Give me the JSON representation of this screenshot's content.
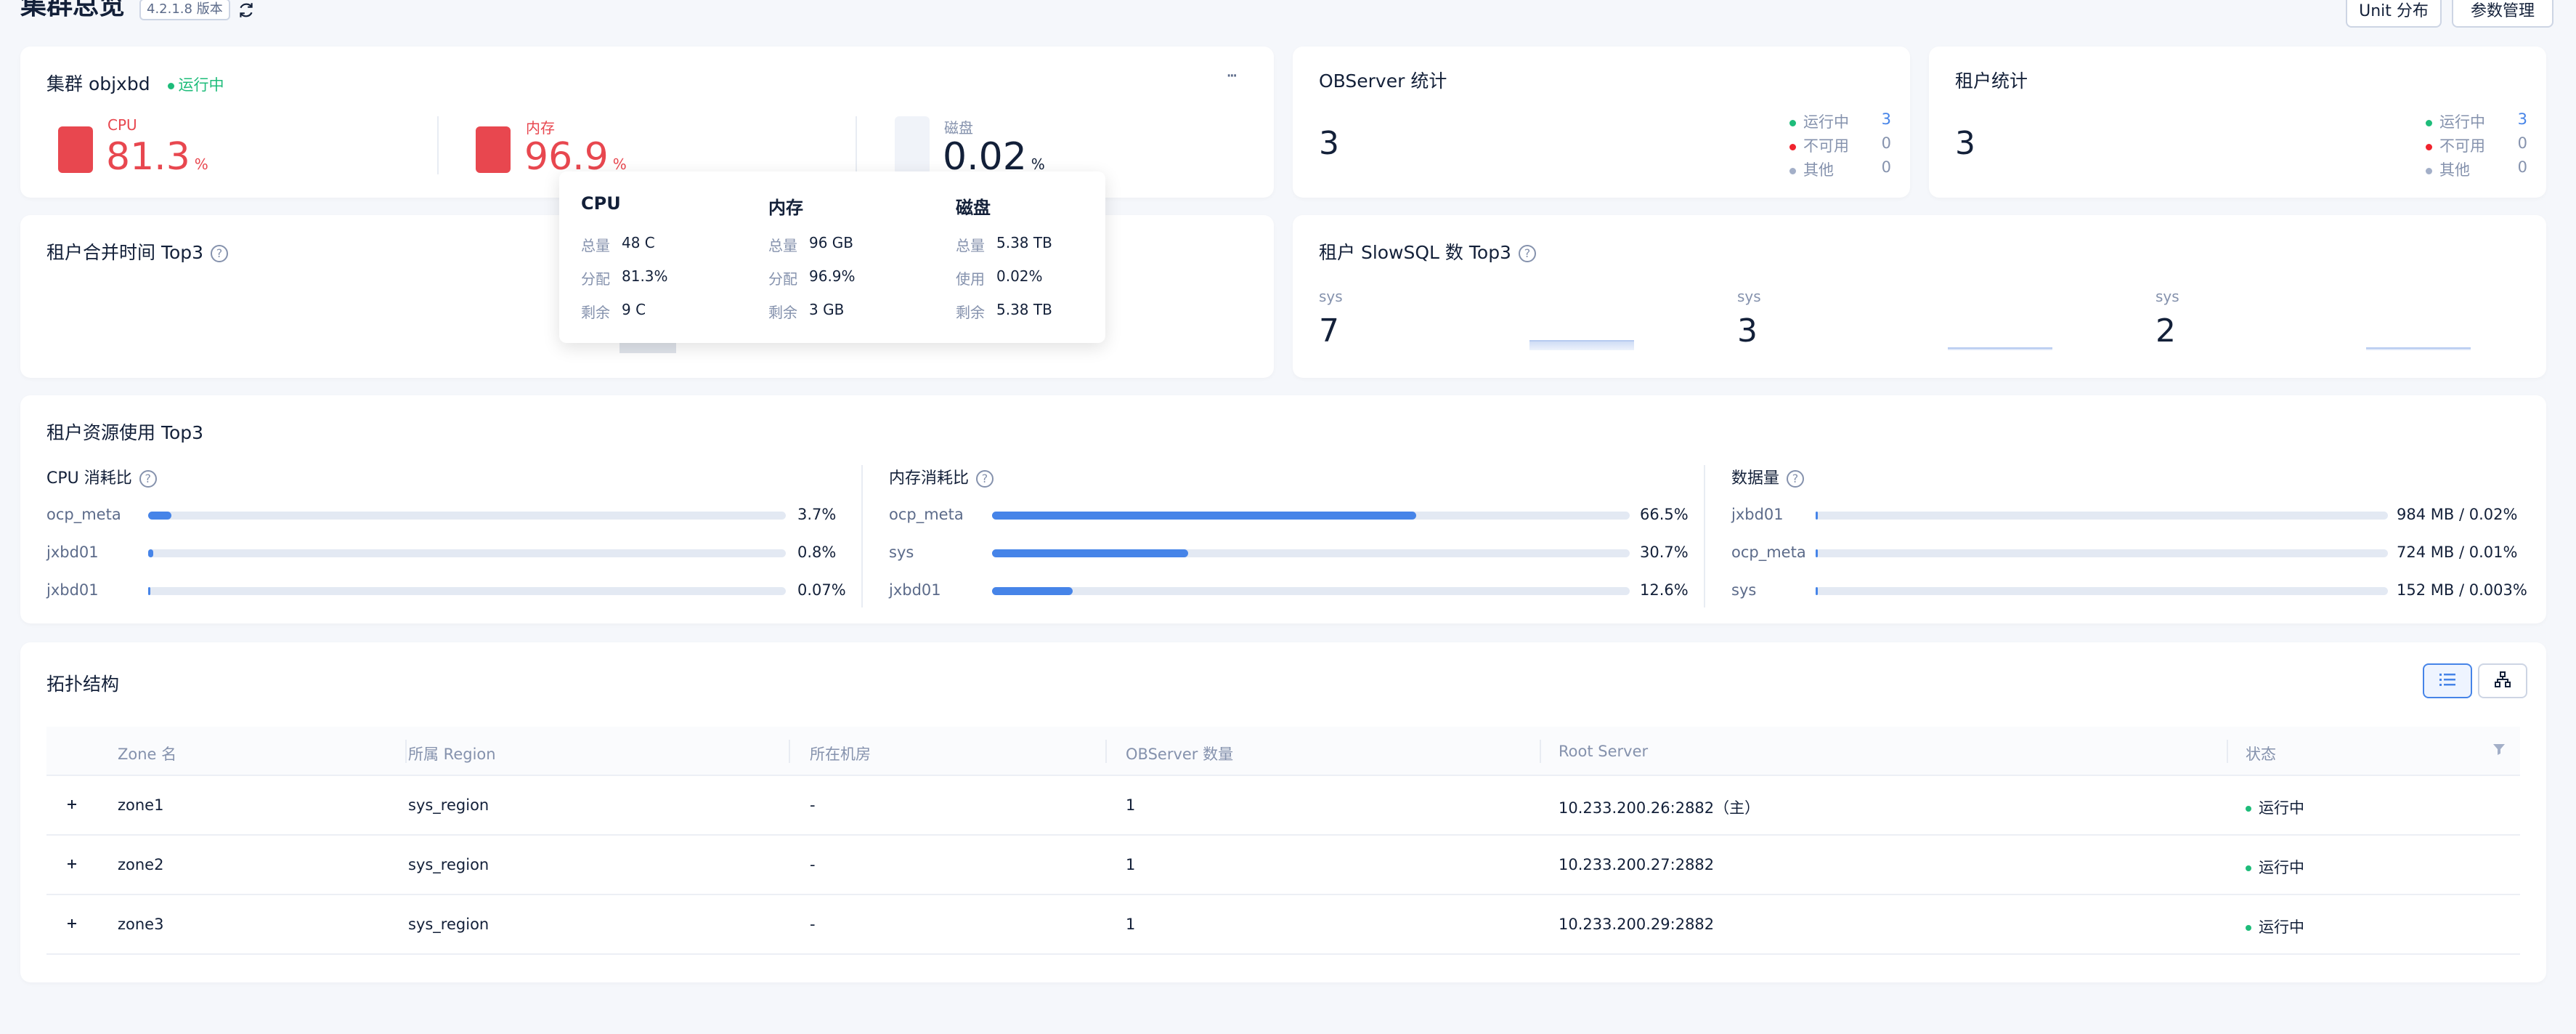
{
  "header": {
    "title": "集群总览",
    "version": "4.2.1.8 版本",
    "unit_button": "Unit 分布",
    "param_button": "参数管理"
  },
  "cluster": {
    "name": "集群 objxbd",
    "status": "运行中",
    "cpu": {
      "label": "CPU",
      "value": "81.3",
      "unit": "%"
    },
    "memory": {
      "label": "内存",
      "value": "96.9",
      "unit": "%"
    },
    "disk": {
      "label": "磁盘",
      "value": "0.02",
      "unit": "%"
    },
    "more": "···"
  },
  "tooltip": {
    "cpu": {
      "title": "CPU",
      "rows": [
        [
          "总量",
          "48 C"
        ],
        [
          "分配",
          "81.3%"
        ],
        [
          "剩余",
          "9 C"
        ]
      ]
    },
    "memory": {
      "title": "内存",
      "rows": [
        [
          "总量",
          "96 GB"
        ],
        [
          "分配",
          "96.9%"
        ],
        [
          "剩余",
          "3 GB"
        ]
      ]
    },
    "disk": {
      "title": "磁盘",
      "rows": [
        [
          "总量",
          "5.38 TB"
        ],
        [
          "使用",
          "0.02%"
        ],
        [
          "剩余",
          "5.38 TB"
        ]
      ]
    }
  },
  "observer_stats": {
    "title": "OBServer 统计",
    "total": "3",
    "legend": [
      {
        "label": "运行中",
        "value": "3",
        "color": "#1ebc7a"
      },
      {
        "label": "不可用",
        "value": "0",
        "color": "#f0232d"
      },
      {
        "label": "其他",
        "value": "0",
        "color": "#a3afc8"
      }
    ]
  },
  "tenant_stats": {
    "title": "租户统计",
    "total": "3",
    "legend": [
      {
        "label": "运行中",
        "value": "3",
        "color": "#1ebc7a"
      },
      {
        "label": "不可用",
        "value": "0",
        "color": "#f0232d"
      },
      {
        "label": "其他",
        "value": "0",
        "color": "#a3afc8"
      }
    ]
  },
  "compaction": {
    "title": "租户合并时间 Top3"
  },
  "slowsql": {
    "title": "租户 SlowSQL 数 Top3",
    "items": [
      {
        "tenant": "sys",
        "count": "7",
        "spark": 0.35
      },
      {
        "tenant": "sys",
        "count": "3",
        "spark": 0.1
      },
      {
        "tenant": "sys",
        "count": "2",
        "spark": 0.05
      }
    ]
  },
  "resource": {
    "title": "租户资源使用 Top3",
    "cpu": {
      "title": "CPU 消耗比",
      "rows": [
        {
          "name": "ocp_meta",
          "value": "3.7%",
          "ratio": 0.037
        },
        {
          "name": "jxbd01",
          "value": "0.8%",
          "ratio": 0.008
        },
        {
          "name": "jxbd01",
          "value": "0.07%",
          "ratio": 0.0007
        }
      ]
    },
    "memory": {
      "title": "内存消耗比",
      "rows": [
        {
          "name": "ocp_meta",
          "value": "66.5%",
          "ratio": 0.665
        },
        {
          "name": "sys",
          "value": "30.7%",
          "ratio": 0.307
        },
        {
          "name": "jxbd01",
          "value": "12.6%",
          "ratio": 0.126
        }
      ]
    },
    "data": {
      "title": "数据量",
      "rows": [
        {
          "name": "jxbd01",
          "value": "984 MB / 0.02%",
          "ratio": 0.0002
        },
        {
          "name": "ocp_meta",
          "value": "724 MB / 0.01%",
          "ratio": 0.0001
        },
        {
          "name": "sys",
          "value": "152 MB / 0.003%",
          "ratio": 3e-05
        }
      ]
    }
  },
  "topology": {
    "title": "拓扑结构",
    "columns": [
      "Zone 名",
      "所属 Region",
      "所在机房",
      "OBServer 数量",
      "Root Server",
      "状态"
    ],
    "rows": [
      {
        "zone": "zone1",
        "region": "sys_region",
        "idc": "-",
        "count": "1",
        "root": "10.233.200.26:2882（主）",
        "status": "运行中"
      },
      {
        "zone": "zone2",
        "region": "sys_region",
        "idc": "-",
        "count": "1",
        "root": "10.233.200.27:2882",
        "status": "运行中"
      },
      {
        "zone": "zone3",
        "region": "sys_region",
        "idc": "-",
        "count": "1",
        "root": "10.233.200.29:2882",
        "status": "运行中"
      }
    ]
  },
  "colors": {
    "accent": "#4684e8",
    "danger": "#e8474f",
    "running": "#1ebc7a"
  }
}
